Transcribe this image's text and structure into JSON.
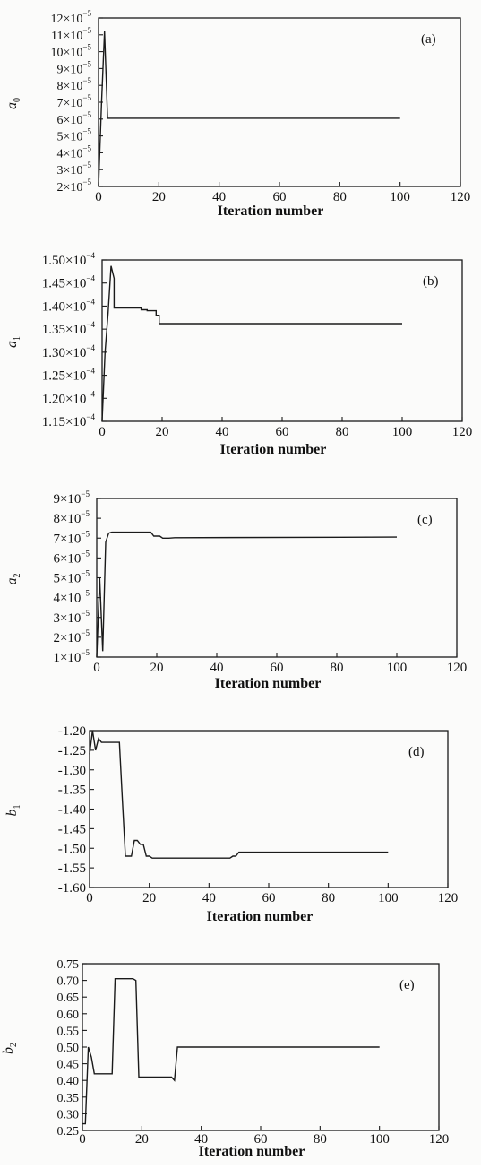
{
  "chart_data": [
    {
      "type": "line",
      "panel_tag": "(a)",
      "ylabel": "a",
      "ylabel_sub": "0",
      "xlabel": "Iteration number",
      "xlim": [
        0,
        120
      ],
      "ylim": [
        2e-05,
        0.00012
      ],
      "x_ticks": [
        "0",
        "20",
        "40",
        "60",
        "80",
        "100",
        "120"
      ],
      "y_ticks": [
        {
          "mantissa": "2×10",
          "exp": "−5",
          "value": 2e-05
        },
        {
          "mantissa": "3×10",
          "exp": "−5",
          "value": 3e-05
        },
        {
          "mantissa": "4×10",
          "exp": "−5",
          "value": 4e-05
        },
        {
          "mantissa": "5×10",
          "exp": "−5",
          "value": 5e-05
        },
        {
          "mantissa": "6×10",
          "exp": "−5",
          "value": 6e-05
        },
        {
          "mantissa": "7×10",
          "exp": "−5",
          "value": 7e-05
        },
        {
          "mantissa": "8×10",
          "exp": "−5",
          "value": 8e-05
        },
        {
          "mantissa": "9×10",
          "exp": "−5",
          "value": 9e-05
        },
        {
          "mantissa": "10×10",
          "exp": "−5",
          "value": 0.0001
        },
        {
          "mantissa": "11×10",
          "exp": "−5",
          "value": 0.00011
        },
        {
          "mantissa": "12×10",
          "exp": "−5",
          "value": 0.00012
        }
      ],
      "series": [
        {
          "x": [
            0,
            1,
            2,
            3,
            100
          ],
          "y": [
            2e-05,
            7e-05,
            0.000112,
            6.05e-05,
            6.05e-05
          ]
        }
      ]
    },
    {
      "type": "line",
      "panel_tag": "(b)",
      "ylabel": "a",
      "ylabel_sub": "1",
      "xlabel": "Iteration number",
      "xlim": [
        0,
        120
      ],
      "ylim": [
        0.000115,
        0.00015
      ],
      "x_ticks": [
        "0",
        "20",
        "40",
        "60",
        "80",
        "100",
        "120"
      ],
      "y_ticks": [
        {
          "mantissa": "1.15×10",
          "exp": "−4",
          "value": 0.000115
        },
        {
          "mantissa": "1.20×10",
          "exp": "−4",
          "value": 0.00012
        },
        {
          "mantissa": "1.25×10",
          "exp": "−4",
          "value": 0.000125
        },
        {
          "mantissa": "1.30×10",
          "exp": "−4",
          "value": 0.00013
        },
        {
          "mantissa": "1.35×10",
          "exp": "−4",
          "value": 0.000135
        },
        {
          "mantissa": "1.40×10",
          "exp": "−4",
          "value": 0.00014
        },
        {
          "mantissa": "1.45×10",
          "exp": "−4",
          "value": 0.000145
        },
        {
          "mantissa": "1.50×10",
          "exp": "−4",
          "value": 0.00015
        }
      ],
      "series": [
        {
          "x": [
            0,
            1,
            2,
            3,
            4,
            4,
            13,
            13,
            15,
            15,
            18,
            18,
            19,
            19,
            100
          ],
          "y": [
            0.000115,
            0.00013,
            0.0001385,
            0.0001487,
            0.000146,
            0.0001396,
            0.0001396,
            0.0001392,
            0.0001392,
            0.000139,
            0.000139,
            0.000138,
            0.000138,
            0.0001362,
            0.0001362
          ]
        }
      ]
    },
    {
      "type": "line",
      "panel_tag": "(c)",
      "ylabel": "a",
      "ylabel_sub": "2",
      "xlabel": "Iteration number",
      "xlim": [
        0,
        120
      ],
      "ylim": [
        1e-05,
        9e-05
      ],
      "x_ticks": [
        "0",
        "20",
        "40",
        "60",
        "80",
        "100",
        "120"
      ],
      "y_ticks": [
        {
          "mantissa": "1×10",
          "exp": "−5",
          "value": 1e-05
        },
        {
          "mantissa": "2×10",
          "exp": "−5",
          "value": 2e-05
        },
        {
          "mantissa": "3×10",
          "exp": "−5",
          "value": 3e-05
        },
        {
          "mantissa": "4×10",
          "exp": "−5",
          "value": 4e-05
        },
        {
          "mantissa": "5×10",
          "exp": "−5",
          "value": 5e-05
        },
        {
          "mantissa": "6×10",
          "exp": "−5",
          "value": 6e-05
        },
        {
          "mantissa": "7×10",
          "exp": "−5",
          "value": 7e-05
        },
        {
          "mantissa": "8×10",
          "exp": "−5",
          "value": 8e-05
        },
        {
          "mantissa": "9×10",
          "exp": "−5",
          "value": 9e-05
        }
      ],
      "series": [
        {
          "x": [
            0,
            1,
            2,
            3,
            4,
            5,
            18,
            19,
            21,
            22,
            24,
            26,
            100
          ],
          "y": [
            1e-05,
            5e-05,
            1.3e-05,
            6.8e-05,
            7.25e-05,
            7.3e-05,
            7.3e-05,
            7.1e-05,
            7.1e-05,
            7e-05,
            7e-05,
            7.02e-05,
            7.05e-05
          ]
        }
      ]
    },
    {
      "type": "line",
      "panel_tag": "(d)",
      "ylabel": "b",
      "ylabel_sub": "1",
      "xlabel": "Iteration number",
      "xlim": [
        0,
        120
      ],
      "ylim": [
        -1.6,
        -1.2
      ],
      "x_ticks": [
        "0",
        "20",
        "40",
        "60",
        "80",
        "100",
        "120"
      ],
      "y_ticks": [
        {
          "mantissa": "-1.20",
          "exp": "",
          "value": -1.2
        },
        {
          "mantissa": "-1.25",
          "exp": "",
          "value": -1.25
        },
        {
          "mantissa": "-1.30",
          "exp": "",
          "value": -1.3
        },
        {
          "mantissa": "-1.35",
          "exp": "",
          "value": -1.35
        },
        {
          "mantissa": "-1.40",
          "exp": "",
          "value": -1.4
        },
        {
          "mantissa": "-1.45",
          "exp": "",
          "value": -1.45
        },
        {
          "mantissa": "-1.50",
          "exp": "",
          "value": -1.5
        },
        {
          "mantissa": "-1.55",
          "exp": "",
          "value": -1.55
        },
        {
          "mantissa": "-1.60",
          "exp": "",
          "value": -1.6
        }
      ],
      "series": [
        {
          "x": [
            0,
            1,
            2,
            3,
            4,
            5,
            10,
            11,
            12,
            13,
            14,
            15,
            16,
            17,
            18,
            19,
            20,
            21,
            46,
            47,
            48,
            49,
            50,
            100
          ],
          "y": [
            -1.26,
            -1.2,
            -1.25,
            -1.22,
            -1.23,
            -1.23,
            -1.23,
            -1.38,
            -1.52,
            -1.52,
            -1.52,
            -1.48,
            -1.48,
            -1.49,
            -1.49,
            -1.52,
            -1.52,
            -1.525,
            -1.525,
            -1.525,
            -1.52,
            -1.52,
            -1.51,
            -1.51
          ]
        }
      ]
    },
    {
      "type": "line",
      "panel_tag": "(e)",
      "ylabel": "b",
      "ylabel_sub": "2",
      "xlabel": "Iteration number",
      "xlim": [
        0,
        120
      ],
      "ylim": [
        0.25,
        0.75
      ],
      "x_ticks": [
        "0",
        "20",
        "40",
        "60",
        "80",
        "100",
        "120"
      ],
      "y_ticks": [
        {
          "mantissa": "0.25",
          "exp": "",
          "value": 0.25
        },
        {
          "mantissa": "0.30",
          "exp": "",
          "value": 0.3
        },
        {
          "mantissa": "0.35",
          "exp": "",
          "value": 0.35
        },
        {
          "mantissa": "0.40",
          "exp": "",
          "value": 0.4
        },
        {
          "mantissa": "0.45",
          "exp": "",
          "value": 0.45
        },
        {
          "mantissa": "0.50",
          "exp": "",
          "value": 0.5
        },
        {
          "mantissa": "0.55",
          "exp": "",
          "value": 0.55
        },
        {
          "mantissa": "0.60",
          "exp": "",
          "value": 0.6
        },
        {
          "mantissa": "0.65",
          "exp": "",
          "value": 0.65
        },
        {
          "mantissa": "0.70",
          "exp": "",
          "value": 0.7
        },
        {
          "mantissa": "0.75",
          "exp": "",
          "value": 0.75
        }
      ],
      "series": [
        {
          "x": [
            0,
            1,
            2,
            3,
            4,
            4,
            10,
            11,
            17,
            18,
            19,
            20,
            30,
            31,
            32,
            100
          ],
          "y": [
            0.27,
            0.27,
            0.5,
            0.47,
            0.42,
            0.42,
            0.42,
            0.705,
            0.705,
            0.7,
            0.41,
            0.41,
            0.41,
            0.4,
            0.5,
            0.5
          ]
        }
      ]
    }
  ]
}
